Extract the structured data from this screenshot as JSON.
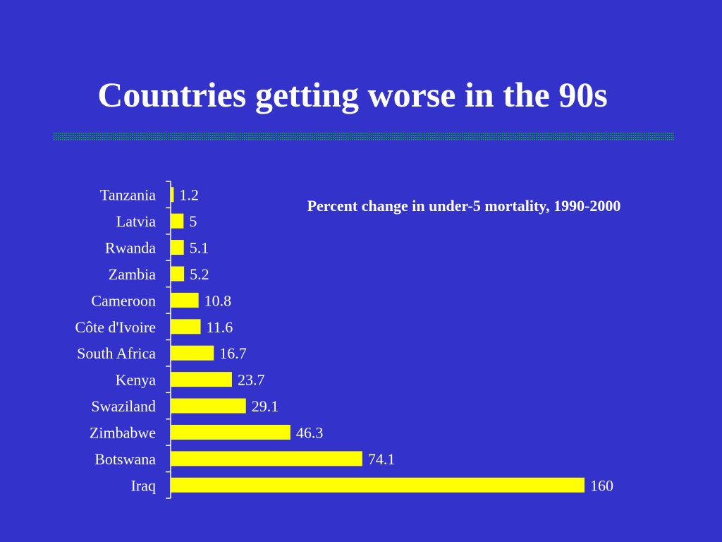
{
  "slide": {
    "title": "Countries getting worse in the 90s"
  },
  "colors": {
    "background": "#3333cc",
    "bar": "#ffff00",
    "text": "#ffffff",
    "title_rule": "#00cc00"
  },
  "chart_data": {
    "type": "bar",
    "orientation": "horizontal",
    "title": "Percent change in under-5 mortality, 1990-2000",
    "categories": [
      "Tanzania",
      "Latvia",
      "Rwanda",
      "Zambia",
      "Cameroon",
      "Côte d'Ivoire",
      "South Africa",
      "Kenya",
      "Swaziland",
      "Zimbabwe",
      "Botswana",
      "Iraq"
    ],
    "values": [
      1.2,
      5,
      5.1,
      5.2,
      10.8,
      11.6,
      16.7,
      23.7,
      29.1,
      46.3,
      74.1,
      160
    ],
    "value_labels": [
      "1.2",
      "5",
      "5.1",
      "5.2",
      "10.8",
      "11.6",
      "16.7",
      "23.7",
      "29.1",
      "46.3",
      "74.1",
      "160"
    ],
    "xlabel": "",
    "ylabel": "",
    "xlim": [
      0,
      160
    ],
    "grid": false,
    "legend": "none"
  }
}
